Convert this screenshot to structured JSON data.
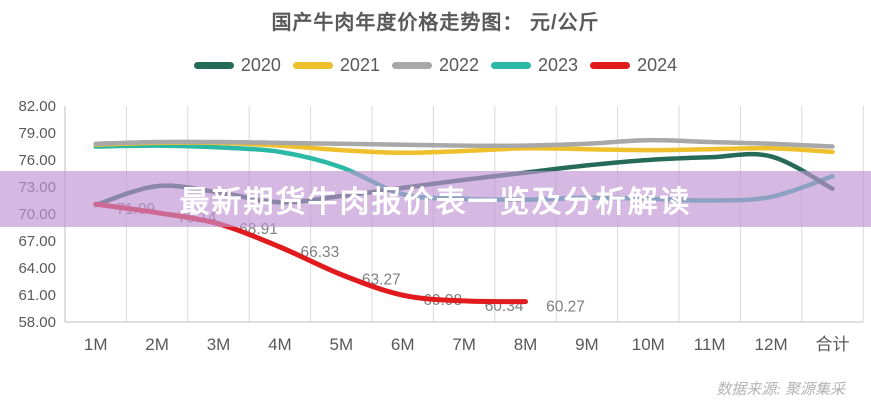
{
  "title": "国产牛肉年度价格走势图： 元/公斤",
  "banner": {
    "text": "最新期货牛肉报价表一览及分析解读",
    "bg_color": "#c195d3"
  },
  "footer": {
    "source": "数据来源: 聚源集采"
  },
  "chart_data": {
    "type": "line",
    "title": "国产牛肉年度价格走势图： 元/公斤",
    "unit": "元/公斤",
    "categories": [
      "1M",
      "2M",
      "3M",
      "4M",
      "5M",
      "6M",
      "7M",
      "8M",
      "9M",
      "10M",
      "11M",
      "12M",
      "合计"
    ],
    "series": [
      {
        "name": "2020",
        "color": "#266b57",
        "values": [
          71.0,
          73.1,
          72.4,
          71.3,
          72.0,
          72.9,
          73.8,
          74.6,
          75.4,
          76.0,
          76.3,
          76.4,
          72.8
        ]
      },
      {
        "name": "2021",
        "color": "#eec02b",
        "values": [
          77.7,
          77.9,
          77.9,
          77.6,
          77.1,
          76.8,
          77.0,
          77.3,
          77.2,
          77.1,
          77.2,
          77.3,
          76.9
        ]
      },
      {
        "name": "2022",
        "color": "#a8a8a8",
        "values": [
          77.8,
          78.0,
          78.0,
          77.9,
          77.8,
          77.7,
          77.6,
          77.6,
          77.8,
          78.2,
          78.0,
          77.8,
          77.5
        ]
      },
      {
        "name": "2023",
        "color": "#2ab9a4",
        "values": [
          77.5,
          77.6,
          77.4,
          76.9,
          75.2,
          72.2,
          71.7,
          71.6,
          71.8,
          71.7,
          71.5,
          71.9,
          74.2
        ]
      },
      {
        "name": "2024",
        "color": "#e01a1d",
        "show_labels": true,
        "values": [
          71.09,
          70.14,
          68.91,
          66.33,
          63.27,
          60.98,
          60.34,
          60.27,
          null,
          null,
          null,
          null,
          null
        ]
      }
    ],
    "y_ticks": [
      "82.00",
      "79.00",
      "76.00",
      "73.00",
      "70.00",
      "67.00",
      "64.00",
      "61.00",
      "58.00"
    ],
    "ylim": [
      58,
      82
    ],
    "grid": "vertical-only",
    "legend_position": "top",
    "label_color": "#7f7f7f",
    "axis_text_color": "#595959",
    "grid_color": "#d9d9d9",
    "axis_line_color": "#bfbfbf"
  }
}
